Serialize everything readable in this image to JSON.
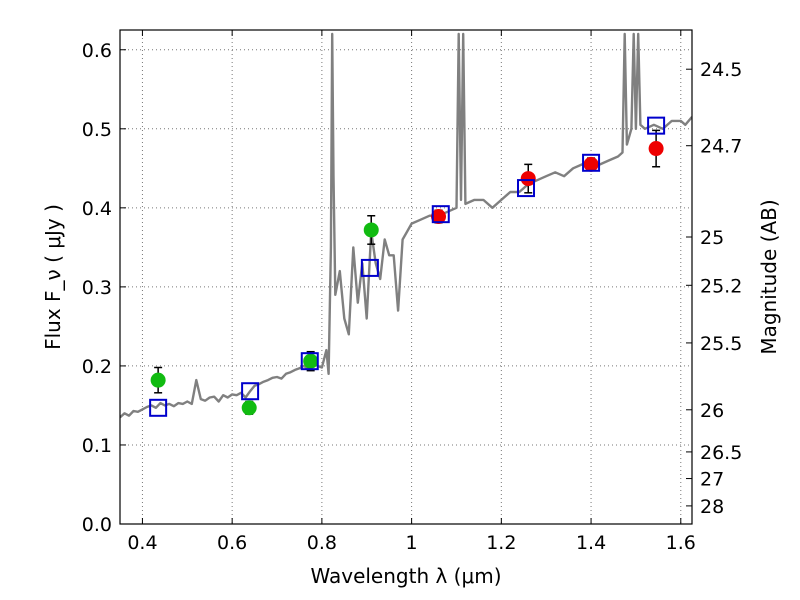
{
  "chart_data": {
    "type": "scatter",
    "title": "",
    "xlabel": "Wavelength  λ (μm)",
    "ylabel": "Flux  F_ν  ( μJy )",
    "ylabel_right": "Magnitude (AB)",
    "xlim": [
      0.35,
      1.625
    ],
    "ylim": [
      0.0,
      0.625
    ],
    "grid": true,
    "x_ticks": [
      {
        "value": 0.4,
        "label": "0.4"
      },
      {
        "value": 0.6,
        "label": "0.6"
      },
      {
        "value": 0.8,
        "label": "0.8"
      },
      {
        "value": 1.0,
        "label": "1"
      },
      {
        "value": 1.2,
        "label": "1.2"
      },
      {
        "value": 1.4,
        "label": "1.4"
      },
      {
        "value": 1.6,
        "label": "1.6"
      }
    ],
    "y_ticks": [
      {
        "value": 0.0,
        "label": "0.0"
      },
      {
        "value": 0.1,
        "label": "0.1"
      },
      {
        "value": 0.2,
        "label": "0.2"
      },
      {
        "value": 0.3,
        "label": "0.3"
      },
      {
        "value": 0.4,
        "label": "0.4"
      },
      {
        "value": 0.5,
        "label": "0.5"
      },
      {
        "value": 0.6,
        "label": "0.6"
      }
    ],
    "magnitude_ticks": [
      {
        "flux": 0.5754,
        "label": "24.5"
      },
      {
        "flux": 0.4786,
        "label": "24.7"
      },
      {
        "flux": 0.3631,
        "label": "25"
      },
      {
        "flux": 0.302,
        "label": "25.2"
      },
      {
        "flux": 0.2291,
        "label": "25.5"
      },
      {
        "flux": 0.1445,
        "label": "26"
      },
      {
        "flux": 0.0912,
        "label": "26.5"
      },
      {
        "flux": 0.0575,
        "label": "27"
      },
      {
        "flux": 0.0229,
        "label": "28"
      }
    ],
    "colors": {
      "spectrum": "#808080",
      "green": "#11bb11",
      "red": "#ee0000",
      "model": "#0000cc",
      "errorbar": "#000000",
      "grid": "#777777"
    },
    "series": [
      {
        "marker": "circle-green",
        "points": [
          {
            "x": 0.435,
            "y": 0.182,
            "err": 0.016
          },
          {
            "x": 0.638,
            "y": 0.147,
            "err": 0.008
          },
          {
            "x": 0.775,
            "y": 0.206,
            "err": 0.012
          },
          {
            "x": 0.91,
            "y": 0.372,
            "err": 0.018
          }
        ]
      },
      {
        "marker": "circle-red",
        "points": [
          {
            "x": 1.06,
            "y": 0.389,
            "err": 0.008
          },
          {
            "x": 1.26,
            "y": 0.437,
            "err": 0.018
          },
          {
            "x": 1.4,
            "y": 0.455,
            "err": 0.008
          },
          {
            "x": 1.545,
            "y": 0.475,
            "err": 0.023
          }
        ]
      },
      {
        "marker": "square-blue",
        "points": [
          {
            "x": 0.435,
            "y": 0.147
          },
          {
            "x": 0.64,
            "y": 0.168
          },
          {
            "x": 0.773,
            "y": 0.206
          },
          {
            "x": 0.907,
            "y": 0.324
          },
          {
            "x": 1.065,
            "y": 0.392
          },
          {
            "x": 1.255,
            "y": 0.425
          },
          {
            "x": 1.4,
            "y": 0.457
          },
          {
            "x": 1.545,
            "y": 0.504
          }
        ]
      },
      {
        "marker": "line-gray",
        "x": [
          0.35,
          0.36,
          0.37,
          0.38,
          0.39,
          0.4,
          0.41,
          0.42,
          0.43,
          0.44,
          0.45,
          0.46,
          0.47,
          0.48,
          0.49,
          0.5,
          0.51,
          0.52,
          0.53,
          0.54,
          0.55,
          0.56,
          0.57,
          0.58,
          0.59,
          0.6,
          0.61,
          0.62,
          0.63,
          0.64,
          0.65,
          0.66,
          0.67,
          0.68,
          0.69,
          0.7,
          0.71,
          0.72,
          0.73,
          0.74,
          0.75,
          0.76,
          0.77,
          0.78,
          0.79,
          0.8,
          0.81,
          0.815,
          0.82,
          0.823,
          0.826,
          0.83,
          0.84,
          0.85,
          0.86,
          0.87,
          0.88,
          0.89,
          0.9,
          0.91,
          0.92,
          0.93,
          0.94,
          0.95,
          0.96,
          0.97,
          0.98,
          0.99,
          1.0,
          1.02,
          1.04,
          1.06,
          1.08,
          1.1,
          1.105,
          1.11,
          1.115,
          1.12,
          1.14,
          1.16,
          1.18,
          1.2,
          1.22,
          1.24,
          1.26,
          1.28,
          1.3,
          1.32,
          1.34,
          1.36,
          1.38,
          1.4,
          1.42,
          1.44,
          1.46,
          1.47,
          1.475,
          1.48,
          1.49,
          1.495,
          1.5,
          1.505,
          1.51,
          1.52,
          1.54,
          1.56,
          1.58,
          1.6,
          1.61,
          1.625
        ],
        "y": [
          0.135,
          0.14,
          0.137,
          0.143,
          0.142,
          0.145,
          0.148,
          0.15,
          0.147,
          0.153,
          0.15,
          0.152,
          0.149,
          0.153,
          0.152,
          0.155,
          0.152,
          0.182,
          0.158,
          0.156,
          0.16,
          0.161,
          0.155,
          0.163,
          0.16,
          0.164,
          0.163,
          0.166,
          0.16,
          0.168,
          0.175,
          0.177,
          0.18,
          0.182,
          0.185,
          0.186,
          0.184,
          0.19,
          0.192,
          0.195,
          0.197,
          0.2,
          0.196,
          0.205,
          0.2,
          0.198,
          0.22,
          0.19,
          0.35,
          0.62,
          0.44,
          0.29,
          0.32,
          0.26,
          0.24,
          0.35,
          0.28,
          0.33,
          0.26,
          0.37,
          0.33,
          0.31,
          0.36,
          0.34,
          0.34,
          0.27,
          0.36,
          0.37,
          0.38,
          0.385,
          0.39,
          0.39,
          0.395,
          0.4,
          0.62,
          0.41,
          0.62,
          0.405,
          0.41,
          0.41,
          0.4,
          0.41,
          0.42,
          0.42,
          0.43,
          0.435,
          0.44,
          0.445,
          0.44,
          0.45,
          0.455,
          0.45,
          0.455,
          0.46,
          0.465,
          0.47,
          0.62,
          0.48,
          0.5,
          0.62,
          0.5,
          0.62,
          0.505,
          0.5,
          0.505,
          0.5,
          0.51,
          0.51,
          0.505,
          0.515
        ]
      }
    ]
  }
}
